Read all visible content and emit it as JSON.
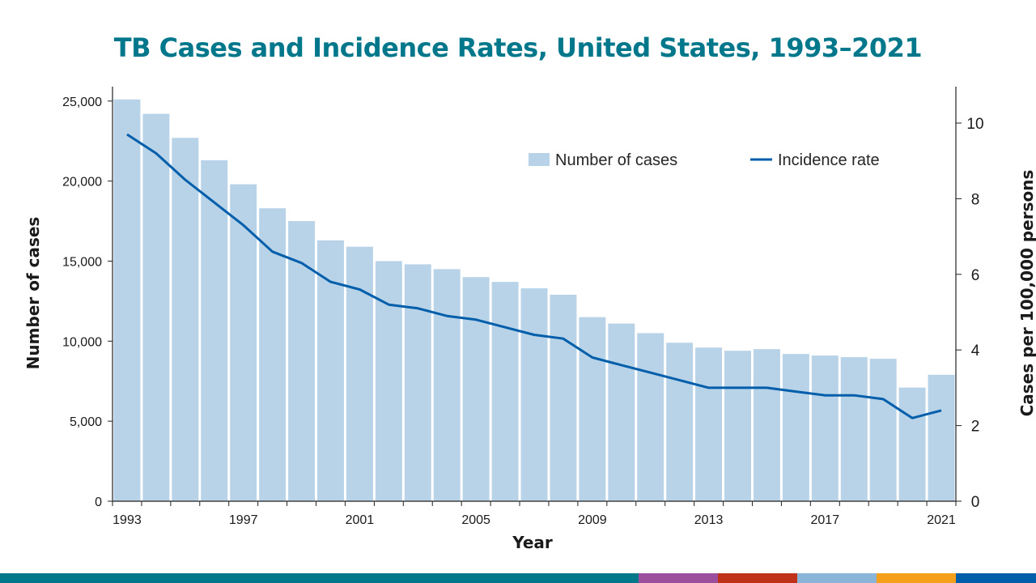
{
  "chart_data": {
    "type": "bar",
    "title": "TB Cases and Incidence Rates, United States, 1993–2021",
    "xlabel": "Year",
    "ylabel": "Number of cases",
    "ylabel_right": "Cases per 100,000 persons",
    "categories": [
      1993,
      1994,
      1995,
      1996,
      1997,
      1998,
      1999,
      2000,
      2001,
      2002,
      2003,
      2004,
      2005,
      2006,
      2007,
      2008,
      2009,
      2010,
      2011,
      2012,
      2013,
      2014,
      2015,
      2016,
      2017,
      2018,
      2019,
      2020,
      2021
    ],
    "x_tick_labels": [
      "1993",
      "1997",
      "2001",
      "2005",
      "2009",
      "2013",
      "2017",
      "2021"
    ],
    "y_ticks": [
      0,
      5000,
      10000,
      15000,
      20000,
      25000
    ],
    "y_tick_labels": [
      "0",
      "5,000",
      "10,000",
      "15,000",
      "20,000",
      "25,000"
    ],
    "y2_ticks": [
      0,
      2,
      4,
      6,
      8,
      10
    ],
    "y2_tick_labels": [
      "0",
      "2",
      "4",
      "6",
      "8",
      "10"
    ],
    "ylim": [
      0,
      26000
    ],
    "y2lim": [
      0,
      11
    ],
    "grid": false,
    "legend_position": "top-right",
    "series": [
      {
        "name": "Number of cases",
        "type": "bar",
        "axis": "left",
        "color": "#b8d2e8",
        "values": [
          25100,
          24200,
          22700,
          21300,
          19800,
          18300,
          17500,
          16300,
          15900,
          15000,
          14800,
          14500,
          14000,
          13700,
          13300,
          12900,
          11500,
          11100,
          10500,
          9900,
          9600,
          9400,
          9500,
          9200,
          9100,
          9000,
          8900,
          7100,
          7900
        ]
      },
      {
        "name": "Incidence rate",
        "type": "line",
        "axis": "right",
        "color": "#005eaa",
        "values": [
          9.7,
          9.2,
          8.5,
          7.9,
          7.3,
          6.6,
          6.3,
          5.8,
          5.6,
          5.2,
          5.1,
          4.9,
          4.8,
          4.6,
          4.4,
          4.3,
          3.8,
          3.6,
          3.4,
          3.2,
          3.0,
          3.0,
          3.0,
          2.9,
          2.8,
          2.8,
          2.7,
          2.2,
          2.4
        ]
      }
    ]
  },
  "footer_colors": [
    "#00778b",
    "#9b4f9c",
    "#c0311a",
    "#8ab4d8",
    "#f5a01a",
    "#005eaa"
  ]
}
